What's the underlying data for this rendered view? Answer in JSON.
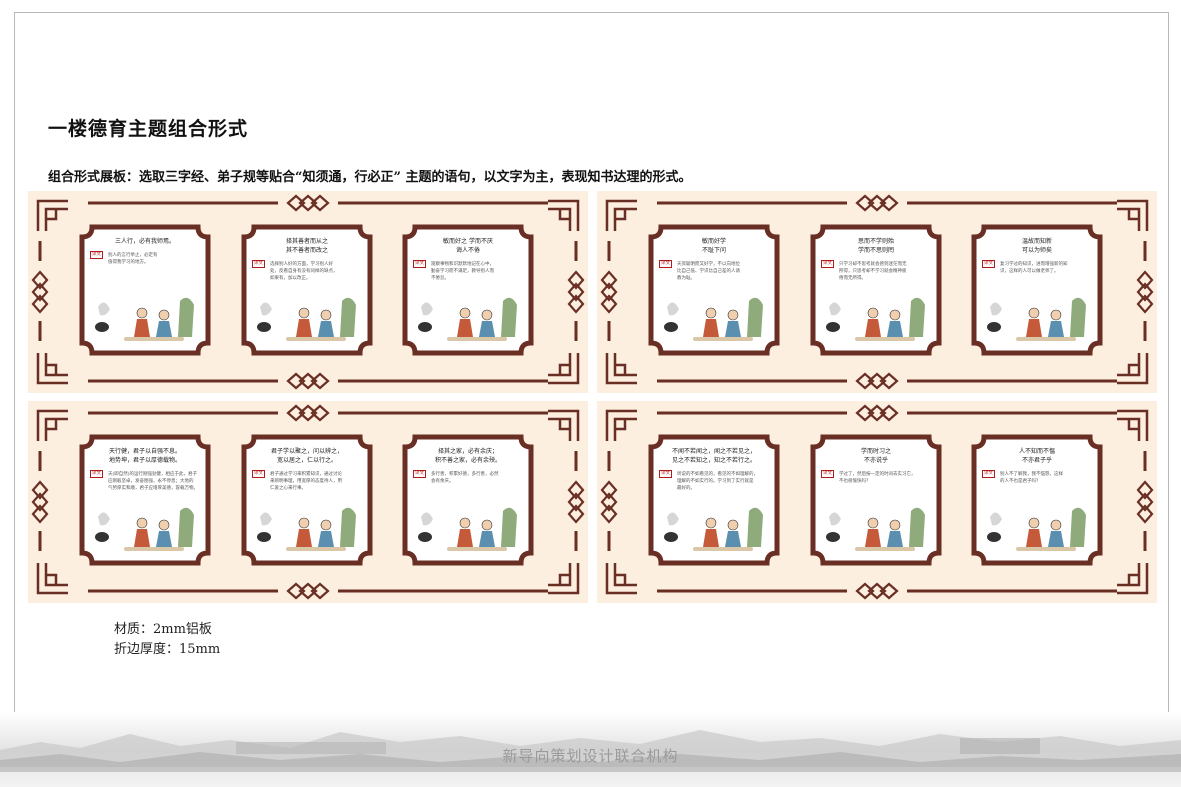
{
  "title": "一楼德育主题组合形式",
  "subtitle": "组合形式展板：选取三字经、弟子规等贴合“知须通，行必正” 主题的语句，以文字为主，表现知书达理的形式。",
  "colors": {
    "frame": "#6a2f24",
    "board_bg": "#fcefdf",
    "tag": "#b31b1b",
    "card_bg": "#ffffff"
  },
  "boards": [
    {
      "cards": [
        {
          "title": "三人行，必有我师焉。",
          "tag": "译文",
          "text": "别人的言行举止，必定有\n值得我学习的地方。",
          "icon": "tree-and-scholars-illustration"
        },
        {
          "title": "择其善者而从之\n其不善者而改之",
          "tag": "译文",
          "text": "选择别人好的方面，学习别人好\n处，反看自身有没有同样的缺点，\n如果有，加以改正。",
          "icon": "students-at-desk-illustration"
        },
        {
          "title": "敏而好之 学而不厌\n诲人不倦",
          "tag": "译文",
          "text": "观察事物和识默默地记在心中，\n勤奋学习而不满足，教导别人而\n不倦怠。",
          "icon": "teacher-and-student-illustration"
        }
      ]
    },
    {
      "cards": [
        {
          "title": "敏而好学\n不耻下问",
          "tag": "译文",
          "text": "天资聪明而又好学，不以向地位\n比自己低、学识比自己差的人请\n教为耻。",
          "icon": "student-asking-teacher-illustration"
        },
        {
          "title": "思而不学则殆\n学而不思则罔",
          "tag": "译文",
          "text": "只学习却不思考就会感到迷茫而无\n所得，只思考却不学习就会精神疲\n倦而无所得。",
          "icon": "scholars-reading-illustration"
        },
        {
          "title": "温故而知新\n可以为师矣",
          "tag": "译文",
          "text": "复习学过的知识，进而增强新的知\n识，这样的人可以做老师了。",
          "icon": "scholar-writing-illustration"
        }
      ]
    },
    {
      "cards": [
        {
          "title": "天行健，君子以自强不息。\n地势坤，君子以厚德载物。",
          "tag": "译文",
          "text": "天(即自然)的运行刚强劲健，相应于此，君子\n应刚毅坚卓，发奋图强，永不停息；大地的\n气势厚实和顺，君子应增厚美德，容载万物。",
          "icon": "children-playing-illustration"
        },
        {
          "title": "君子学以聚之，问以辨之，\n宽以居之，仁以行之。",
          "tag": "译文",
          "text": "君子通过学习来积累知识，通过讨论\n来辨明事理，用宽厚的态度待人，用\n仁爱之心来行事。",
          "icon": "scholars-under-tree-illustration"
        },
        {
          "title": "择其之家，必有余庆；\n积不善之家，必有余殃。",
          "tag": "译文",
          "text": "多行善，积累好德，多行善，必然\n会有余庆。",
          "icon": "crane-and-house-illustration"
        }
      ]
    },
    {
      "cards": [
        {
          "title": "不闻不若闻之，闻之不若见之，\n见之不若知之，知之不若行之。",
          "tag": "译文",
          "text": "听说的不如看见的，看见的不如理解的，\n理解的不如实行的。学习到了实行就是\n最好的。",
          "icon": "children-reading-illustration"
        },
        {
          "title": "学而时习之\n不亦说乎",
          "tag": "译文",
          "text": "学过了，然后按一定的时间去实习它，\n不也很愉快吗？",
          "icon": "mother-and-child-illustration"
        },
        {
          "title": "人不知而不愠\n不亦君子乎",
          "tag": "译文",
          "text": "别人不了解我，我不恼怒，这样\n的人不也是君子吗？",
          "icon": "children-greeting-illustration"
        }
      ]
    }
  ],
  "material": {
    "label_material": "材质：2mm铝板",
    "label_thickness": "折边厚度：15mm"
  },
  "footer": {
    "brand": "新导向策划设计联合机构"
  }
}
